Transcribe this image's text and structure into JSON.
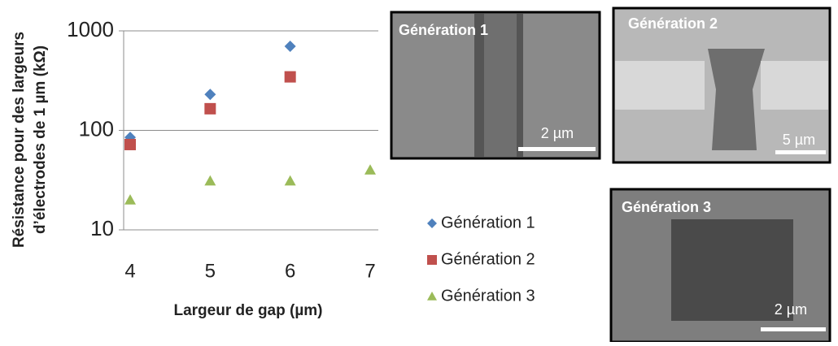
{
  "chart_data": {
    "type": "scatter",
    "y_label_lines": [
      "Résistance pour des largeurs",
      "d’électrodes de 1 µm (kΩ)"
    ],
    "x_label": "Largeur de gap (µm)",
    "series": [
      {
        "name": "Génération 1",
        "color": "#4f81bd",
        "marker": "diamond",
        "x": [
          4,
          5,
          6
        ],
        "values": [
          85,
          230,
          700
        ]
      },
      {
        "name": "Génération 2",
        "color": "#c0504d",
        "marker": "square",
        "x": [
          4,
          5,
          6
        ],
        "values": [
          72,
          165,
          345
        ]
      },
      {
        "name": "Génération 3",
        "color": "#9bbb59",
        "marker": "triangle",
        "x": [
          4,
          5,
          6,
          7
        ],
        "values": [
          20,
          31,
          31,
          40
        ]
      }
    ],
    "xlim": [
      4,
      7
    ],
    "xticks": [
      4,
      5,
      6,
      7
    ],
    "ylim": [
      10,
      1000
    ],
    "yticks": [
      10,
      100,
      1000
    ],
    "log_y": true,
    "grid": true
  },
  "images": [
    {
      "label": "Génération 1",
      "scale": "2 µm"
    },
    {
      "label": "Génération 2",
      "scale": "5 µm"
    },
    {
      "label": "Génération 3",
      "scale": "2 µm"
    }
  ]
}
